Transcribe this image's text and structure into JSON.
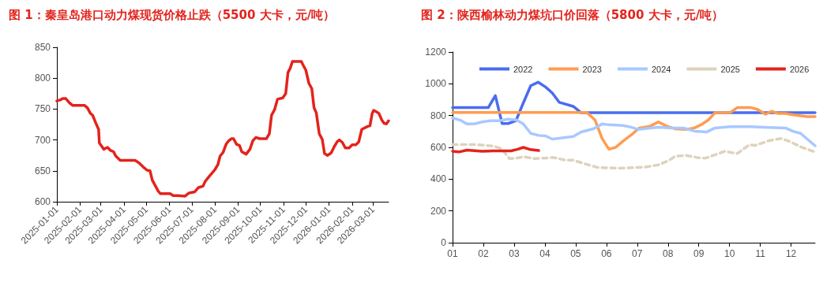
{
  "chart_data": [
    {
      "type": "line",
      "title": "图 1：秦皇岛港口动力煤现货价格止跌（5500 大卡，元/吨）",
      "series": [
        {
          "color": "#e3231c",
          "x": [
            "2025-01-01",
            "2025-01-06",
            "2025-01-09",
            "2025-01-13",
            "2025-01-18",
            "2025-01-22",
            "2025-02-07",
            "2025-02-11",
            "2025-02-15",
            "2025-02-18",
            "2025-02-22",
            "2025-02-26",
            "2025-02-27",
            "2025-03-05",
            "2025-03-10",
            "2025-03-14",
            "2025-03-18",
            "2025-03-21",
            "2025-03-27",
            "2025-04-16",
            "2025-04-21",
            "2025-04-27",
            "2025-05-02",
            "2025-05-06",
            "2025-05-09",
            "2025-05-13",
            "2025-05-17",
            "2025-05-20",
            "2025-06-02",
            "2025-06-06",
            "2025-06-13",
            "2025-06-22",
            "2025-06-27",
            "2025-07-05",
            "2025-07-10",
            "2025-07-16",
            "2025-07-19",
            "2025-07-25",
            "2025-07-28",
            "2025-08-01",
            "2025-08-05",
            "2025-08-08",
            "2025-08-12",
            "2025-08-16",
            "2025-08-19",
            "2025-08-23",
            "2025-08-26",
            "2025-08-30",
            "2025-09-03",
            "2025-09-06",
            "2025-09-12",
            "2025-09-17",
            "2025-09-21",
            "2025-09-25",
            "2025-09-30",
            "2025-10-09",
            "2025-10-13",
            "2025-10-16",
            "2025-10-20",
            "2025-10-24",
            "2025-10-31",
            "2025-11-04",
            "2025-11-07",
            "2025-11-10",
            "2025-11-13",
            "2025-11-25",
            "2025-11-27",
            "2025-12-01",
            "2025-12-05",
            "2025-12-09",
            "2025-12-12",
            "2025-12-15",
            "2025-12-19",
            "2025-12-23",
            "2025-12-26",
            "2025-12-30",
            "2026-01-04",
            "2026-01-08",
            "2026-01-12",
            "2026-01-15",
            "2026-01-19",
            "2026-01-23",
            "2026-01-28",
            "2026-02-01",
            "2026-02-06",
            "2026-02-10",
            "2026-02-14",
            "2026-02-22",
            "2026-02-25",
            "2026-02-28",
            "2026-03-02",
            "2026-03-05",
            "2026-03-09",
            "2026-03-13",
            "2026-03-16",
            "2026-03-19",
            "2026-03-22"
          ],
          "values": [
            763,
            765,
            767,
            767,
            760,
            756,
            756,
            752,
            743,
            740,
            728,
            717,
            695,
            685,
            688,
            683,
            681,
            674,
            667,
            667,
            663,
            656,
            651,
            650,
            635,
            626,
            617,
            613,
            613,
            610,
            610,
            609,
            614,
            616,
            623,
            625,
            633,
            642,
            646,
            652,
            660,
            674,
            680,
            693,
            698,
            702,
            702,
            693,
            691,
            681,
            677,
            685,
            699,
            704,
            702,
            702,
            710,
            740,
            749,
            766,
            768,
            775,
            809,
            816,
            827,
            827,
            822,
            813,
            792,
            783,
            752,
            744,
            710,
            701,
            678,
            675,
            679,
            689,
            697,
            700,
            696,
            687,
            687,
            692,
            692,
            697,
            717,
            722,
            723,
            743,
            748,
            746,
            743,
            732,
            727,
            726,
            731
          ]
        }
      ],
      "xlim": [
        "2025-01-01",
        "2026-03-22"
      ],
      "xticks": [
        "2025-01-01",
        "2025-02-01",
        "2025-03-01",
        "2025-04-01",
        "2025-05-01",
        "2025-06-01",
        "2025-07-01",
        "2025-08-01",
        "2025-09-01",
        "2025-10-01",
        "2025-11-01",
        "2025-12-01",
        "2026-01-01",
        "2026-02-01",
        "2026-03-01"
      ],
      "ylim": [
        600,
        850
      ],
      "yticks": [
        600,
        650,
        700,
        750,
        800,
        850
      ],
      "grid": false,
      "legend": false,
      "marker": "none",
      "line_style": "solid"
    },
    {
      "type": "line",
      "title": "图 2：陕西榆林动力煤坑口价回落（5800 大卡，元/吨）",
      "series": [
        {
          "name": "2022",
          "color": "#4a6cf0",
          "x": [
            1,
            2.16,
            2.39,
            2.61,
            2.81,
            3.06,
            3.3,
            3.54,
            3.78,
            4.02,
            4.24,
            4.47,
            4.92,
            5.18,
            12.78
          ],
          "values": [
            850,
            850,
            925,
            750,
            750,
            768,
            880,
            988,
            1010,
            980,
            942,
            883,
            858,
            818,
            818
          ]
        },
        {
          "name": "2023",
          "color": "#ff9c50",
          "x": [
            1,
            5.36,
            5.63,
            5.86,
            6.08,
            6.3,
            6.53,
            6.8,
            7.07,
            7.42,
            7.69,
            7.96,
            8.23,
            8.59,
            8.86,
            9.08,
            9.31,
            9.53,
            10.02,
            10.25,
            10.7,
            10.92,
            11.17,
            11.37,
            11.59,
            11.82,
            12.08,
            12.53,
            12.78
          ],
          "values": [
            820,
            820,
            772,
            655,
            588,
            600,
            638,
            677,
            722,
            733,
            760,
            733,
            717,
            713,
            722,
            743,
            772,
            818,
            818,
            850,
            850,
            838,
            808,
            827,
            813,
            813,
            805,
            793,
            793
          ]
        },
        {
          "name": "2024",
          "color": "#a8c8ff",
          "x": [
            1,
            1.24,
            1.47,
            1.69,
            1.96,
            2.23,
            2.5,
            2.81,
            3.08,
            3.3,
            3.54,
            3.8,
            4.02,
            4.24,
            4.51,
            4.92,
            5.18,
            5.59,
            5.86,
            6.08,
            6.53,
            6.8,
            7.02,
            7.42,
            7.69,
            8.14,
            8.5,
            8.86,
            9.26,
            9.53,
            10.02,
            10.65,
            11.28,
            11.82,
            12.08,
            12.31,
            12.78
          ],
          "values": [
            785,
            772,
            747,
            747,
            760,
            767,
            767,
            777,
            772,
            747,
            688,
            675,
            672,
            652,
            658,
            668,
            697,
            718,
            747,
            742,
            738,
            727,
            713,
            722,
            727,
            722,
            722,
            702,
            697,
            722,
            730,
            730,
            725,
            722,
            700,
            688,
            610
          ]
        },
        {
          "name": "2025",
          "color": "#ddd3bd",
          "line_style": "dashed",
          "x": [
            1,
            1.78,
            2.32,
            2.59,
            2.85,
            3.08,
            3.3,
            3.66,
            4.29,
            4.65,
            4.92,
            5.36,
            5.72,
            6.44,
            7.25,
            7.69,
            8.01,
            8.23,
            8.59,
            8.95,
            9.22,
            9.84,
            10.25,
            10.65,
            10.83,
            11.28,
            11.68,
            11.99,
            12.35,
            12.78
          ],
          "values": [
            617,
            617,
            608,
            592,
            529,
            532,
            541,
            529,
            536,
            520,
            519,
            493,
            473,
            469,
            476,
            490,
            515,
            544,
            549,
            536,
            532,
            575,
            561,
            617,
            612,
            642,
            656,
            634,
            600,
            571
          ]
        },
        {
          "name": "2026",
          "color": "#e3231c",
          "x": [
            1,
            1.2,
            1.47,
            1.96,
            2.32,
            2.9,
            3.12,
            3.3,
            3.53,
            3.8
          ],
          "values": [
            575,
            571,
            583,
            575,
            578,
            578,
            588,
            600,
            586,
            580
          ]
        }
      ],
      "xlim": [
        1,
        12.78
      ],
      "xticks": [
        {
          "value": 1,
          "label": "01"
        },
        {
          "value": 2,
          "label": "02"
        },
        {
          "value": 3,
          "label": "03"
        },
        {
          "value": 4,
          "label": "04"
        },
        {
          "value": 5,
          "label": "05"
        },
        {
          "value": 6,
          "label": "06"
        },
        {
          "value": 7,
          "label": "07"
        },
        {
          "value": 8,
          "label": "08"
        },
        {
          "value": 9,
          "label": "09"
        },
        {
          "value": 10,
          "label": "10"
        },
        {
          "value": 11,
          "label": "11"
        },
        {
          "value": 12,
          "label": "12"
        }
      ],
      "ylim": [
        0,
        1200
      ],
      "yticks": [
        0,
        200,
        400,
        600,
        800,
        1000,
        1200
      ],
      "grid": false,
      "legend": "top",
      "marker": "none",
      "line_style": "solid"
    }
  ]
}
